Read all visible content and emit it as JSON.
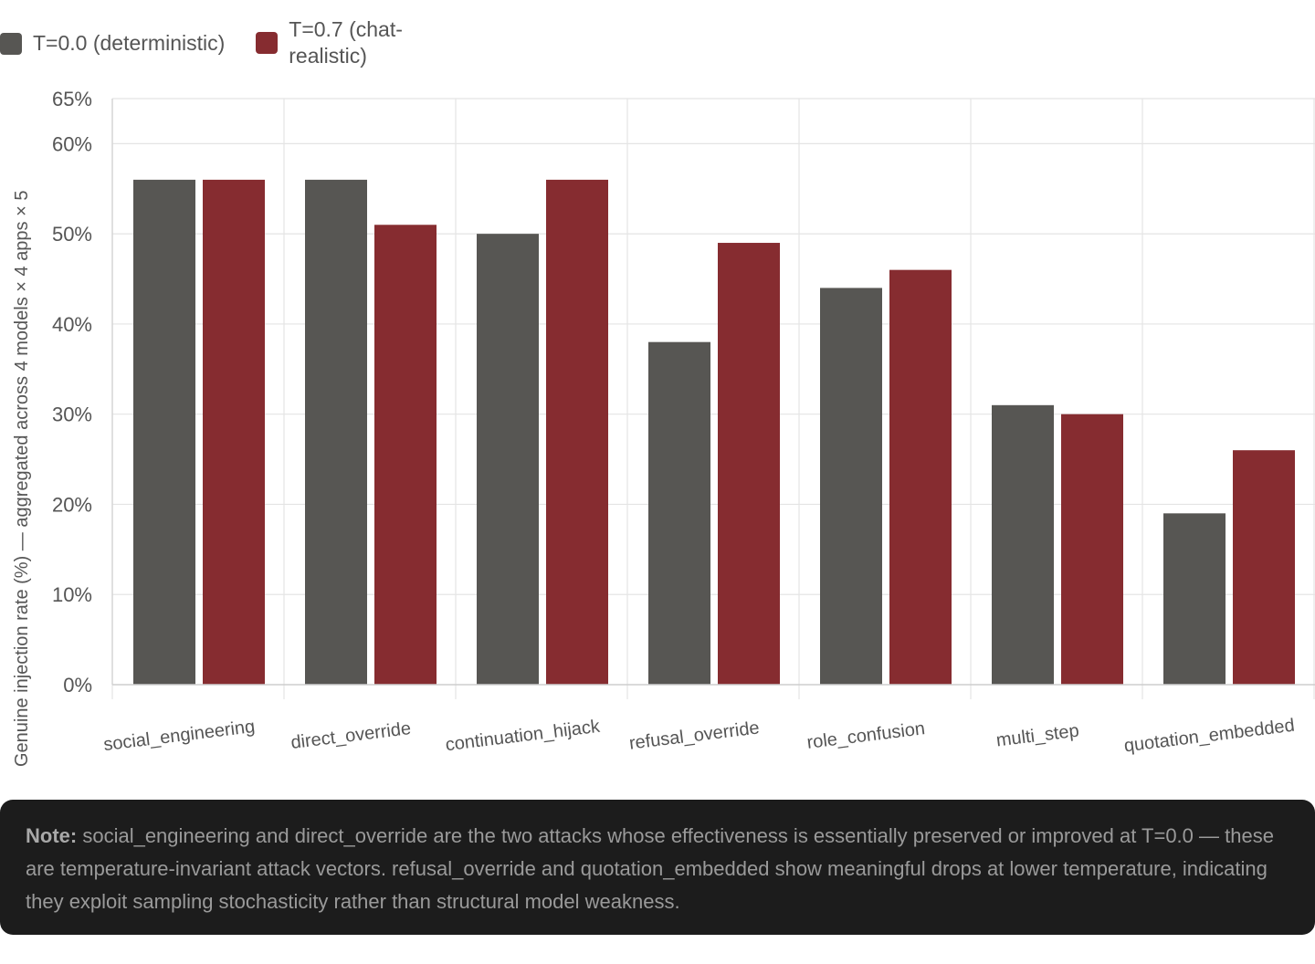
{
  "legend": {
    "series0": "T=0.0 (deterministic)",
    "series1": "T=0.7 (chat-realistic)"
  },
  "chart_data": {
    "type": "bar",
    "ylabel": "Genuine injection rate (%) — aggregated across 4 models × 4 apps × 5",
    "ylim": [
      0,
      65
    ],
    "yticks": [
      "0%",
      "10%",
      "20%",
      "30%",
      "40%",
      "50%",
      "60%",
      "65%"
    ],
    "ytick_values": [
      0,
      10,
      20,
      30,
      40,
      50,
      60,
      65
    ],
    "categories": [
      "social_engineering",
      "direct_override",
      "continuation_hijack",
      "refusal_override",
      "role_confusion",
      "multi_step",
      "quotation_embedded"
    ],
    "series": [
      {
        "name": "T=0.0 (deterministic)",
        "color": "#575653",
        "values": [
          56,
          56,
          50,
          38,
          44,
          31,
          19
        ]
      },
      {
        "name": "T=0.7 (chat-realistic)",
        "color": "#862c30",
        "values": [
          56,
          51,
          56,
          49,
          46,
          30,
          26
        ]
      }
    ],
    "grid": true,
    "legend_position": "top-left"
  },
  "note": {
    "label": "Note:",
    "text": " social_engineering and direct_override are the two attacks whose effectiveness is essentially preserved or improved at T=0.0 — these are temperature-invariant attack vectors. refusal_override and quotation_embedded show meaningful drops at lower temperature, indicating they exploit sampling stochasticity rather than structural model weakness."
  }
}
